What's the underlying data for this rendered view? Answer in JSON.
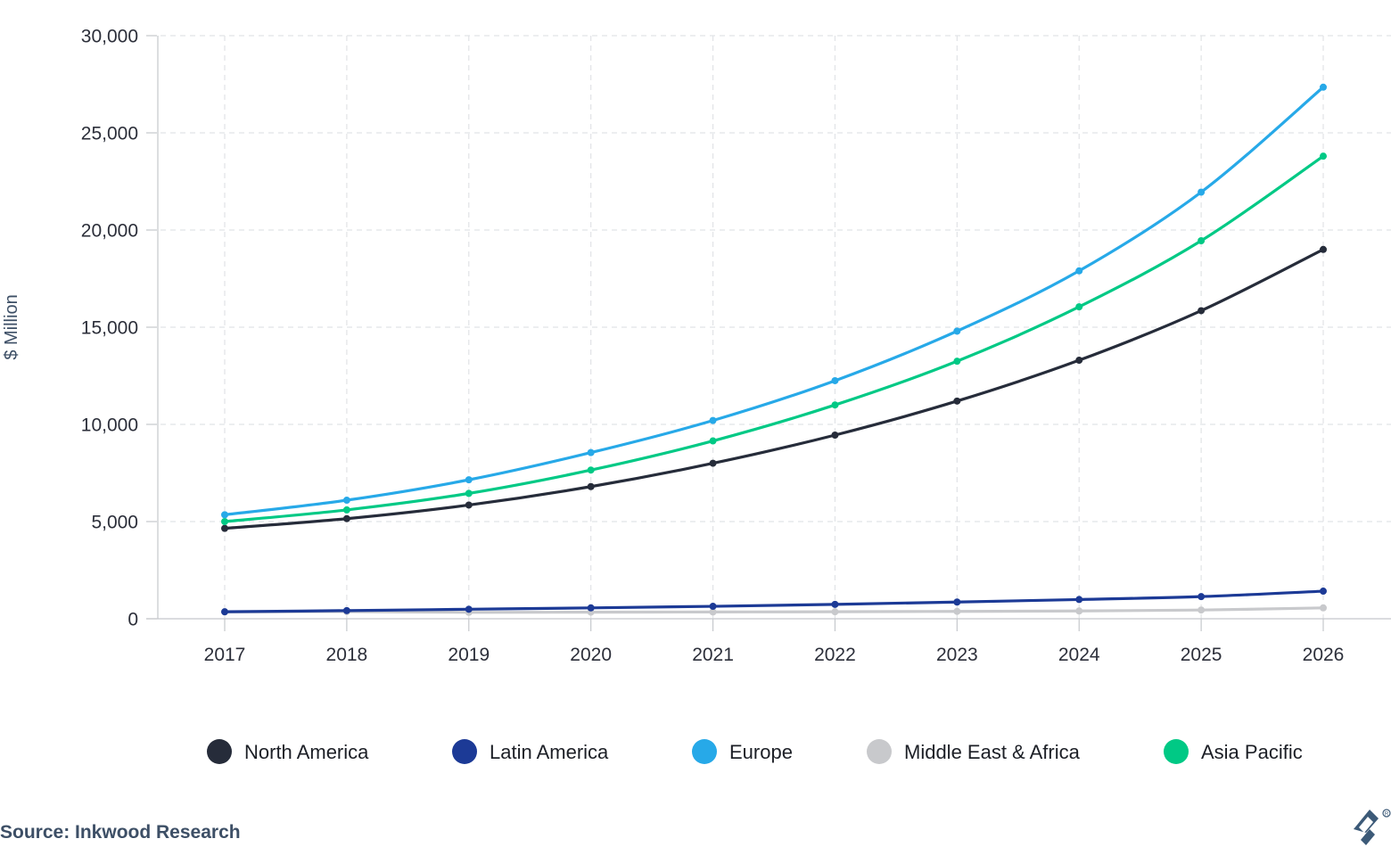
{
  "chart_data": {
    "type": "line",
    "title": "",
    "xlabel": "",
    "ylabel": "$ Million",
    "ylim": [
      0,
      30000
    ],
    "yticks": [
      0,
      5000,
      10000,
      15000,
      20000,
      25000,
      30000
    ],
    "ytick_labels": [
      "0",
      "5,000",
      "10,000",
      "15,000",
      "20,000",
      "25,000",
      "30,000"
    ],
    "categories": [
      "2017",
      "2018",
      "2019",
      "2020",
      "2021",
      "2022",
      "2023",
      "2024",
      "2025",
      "2026"
    ],
    "grid": true,
    "legend_position": "bottom",
    "series": [
      {
        "name": "Middle East & Africa",
        "color": "#c8c9cc",
        "values": [
          350,
          370,
          330,
          340,
          350,
          360,
          380,
          400,
          450,
          560
        ]
      },
      {
        "name": "Latin America",
        "color": "#1c3a96",
        "values": [
          360,
          420,
          490,
          560,
          640,
          740,
          860,
          990,
          1140,
          1420
        ]
      },
      {
        "name": "North America",
        "color": "#262c3a",
        "values": [
          4650,
          5150,
          5850,
          6800,
          8000,
          9450,
          11200,
          13300,
          15850,
          19000
        ]
      },
      {
        "name": "Asia Pacific",
        "color": "#00c985",
        "values": [
          5000,
          5600,
          6450,
          7650,
          9150,
          11000,
          13250,
          16050,
          19450,
          23800
        ]
      },
      {
        "name": "Europe",
        "color": "#27a9e8",
        "values": [
          5350,
          6100,
          7150,
          8550,
          10200,
          12250,
          14800,
          17900,
          21950,
          27350
        ]
      }
    ],
    "legend_order": [
      "North America",
      "Latin America",
      "Europe",
      "Middle East & Africa",
      "Asia Pacific"
    ]
  },
  "source": "Source: Inkwood Research",
  "logo": {
    "name": "toptal-logo",
    "color": "#3c5a78"
  }
}
